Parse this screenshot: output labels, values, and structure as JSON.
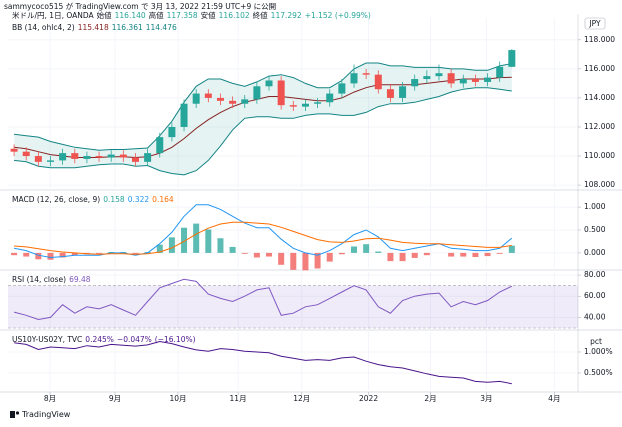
{
  "header": {
    "publisher": "sammycoco515 が TradingView.com で 3月 13, 2022 21:59 UTC+9 に公開",
    "footer": "TradingView",
    "currency": "JPY"
  },
  "chart_data": [
    {
      "type": "candlestick",
      "title": "米ドル/円, 1日, OANDA",
      "legend": [
        {
          "label": "始値",
          "value": "116.140"
        },
        {
          "label": "高値",
          "value": "117.358"
        },
        {
          "label": "安値",
          "value": "116.102"
        },
        {
          "label": "終値",
          "value": "117.292"
        }
      ],
      "change": "+1.152 (+0.99%)",
      "up_color": "#26a69a",
      "down_color": "#ef5350",
      "open": [
        110.5,
        110.3,
        110.0,
        109.6,
        109.7,
        110.2,
        109.8,
        110.0,
        109.9,
        110.1,
        109.9,
        109.6,
        110.2,
        111.3,
        112.0,
        113.6,
        114.3,
        114.0,
        113.8,
        113.6,
        113.9,
        114.8,
        115.2,
        113.5,
        113.4,
        113.6,
        113.7,
        114.3,
        115.0,
        115.7,
        115.6,
        114.6,
        114.0,
        114.8,
        115.3,
        115.5,
        115.7,
        115.0,
        115.3,
        115.1,
        115.4,
        116.14
      ],
      "high": [
        110.8,
        110.6,
        110.3,
        110.0,
        110.5,
        110.5,
        110.3,
        110.3,
        110.4,
        110.4,
        110.2,
        110.5,
        111.6,
        112.3,
        113.9,
        114.6,
        114.6,
        114.3,
        114.1,
        114.2,
        115.1,
        115.5,
        115.5,
        113.8,
        113.9,
        114.0,
        114.6,
        115.3,
        116.3,
        116.0,
        115.9,
        114.9,
        115.1,
        115.6,
        115.9,
        116.3,
        116.0,
        115.6,
        115.6,
        115.7,
        116.5,
        117.358
      ],
      "low": [
        110.0,
        109.7,
        109.3,
        109.3,
        109.4,
        109.5,
        109.5,
        109.6,
        109.6,
        109.6,
        109.3,
        109.3,
        109.9,
        111.0,
        111.7,
        113.3,
        113.7,
        113.5,
        113.3,
        113.3,
        113.6,
        114.5,
        113.2,
        113.1,
        113.1,
        113.3,
        113.4,
        114.0,
        114.7,
        115.3,
        114.3,
        113.7,
        113.7,
        114.5,
        115.0,
        115.2,
        114.7,
        114.7,
        114.8,
        114.8,
        115.1,
        116.102
      ],
      "close": [
        110.3,
        110.0,
        109.6,
        109.7,
        110.2,
        109.8,
        110.0,
        109.9,
        110.1,
        109.9,
        109.6,
        110.2,
        111.3,
        112.0,
        113.6,
        114.3,
        114.0,
        113.8,
        113.6,
        113.9,
        114.8,
        115.2,
        113.5,
        113.4,
        113.6,
        113.7,
        114.3,
        115.0,
        115.7,
        115.6,
        114.6,
        114.0,
        114.8,
        115.3,
        115.5,
        115.7,
        115.0,
        115.3,
        115.1,
        115.4,
        116.14,
        117.292
      ],
      "bands_title": "BB (14, ohlc4, 2)",
      "band_fill": "rgba(38,166,154,0.12)",
      "series": [
        {
          "label": "115.418",
          "color": "#872323",
          "values": [
            110.6,
            110.5,
            110.3,
            110.1,
            110.0,
            109.9,
            109.9,
            109.9,
            109.95,
            109.95,
            109.9,
            109.95,
            110.2,
            110.6,
            111.2,
            111.9,
            112.5,
            113.0,
            113.4,
            113.7,
            113.9,
            114.1,
            114.1,
            114.0,
            113.9,
            113.8,
            113.8,
            114.0,
            114.4,
            114.7,
            114.9,
            114.9,
            114.9,
            114.9,
            115.0,
            115.1,
            115.2,
            115.3,
            115.3,
            115.3,
            115.4,
            115.418
          ]
        },
        {
          "label": "116.361",
          "color": "#138484",
          "values": [
            111.5,
            111.4,
            111.3,
            111.0,
            110.8,
            110.6,
            110.5,
            110.4,
            110.45,
            110.45,
            110.5,
            110.55,
            111.4,
            112.4,
            113.7,
            114.8,
            115.3,
            115.3,
            115.0,
            114.8,
            115.1,
            115.5,
            115.6,
            115.4,
            115.0,
            114.7,
            114.7,
            115.2,
            116.0,
            116.4,
            116.4,
            116.2,
            116.2,
            116.1,
            116.1,
            116.1,
            116.0,
            116.0,
            115.9,
            115.9,
            116.2,
            116.361
          ]
        },
        {
          "label": "114.476",
          "color": "#138484",
          "values": [
            109.7,
            109.6,
            109.3,
            109.2,
            109.2,
            109.2,
            109.3,
            109.4,
            109.45,
            109.45,
            109.3,
            109.35,
            109.0,
            108.8,
            108.7,
            109.0,
            109.7,
            110.7,
            111.8,
            112.6,
            112.7,
            112.7,
            112.6,
            112.6,
            112.8,
            112.9,
            112.9,
            112.8,
            112.8,
            113.0,
            113.4,
            113.6,
            113.6,
            113.7,
            113.9,
            114.1,
            114.4,
            114.6,
            114.7,
            114.7,
            114.6,
            114.476
          ]
        }
      ],
      "xlim": [
        -0.5,
        46.45
      ],
      "ylim": [
        107.8,
        119.5
      ],
      "yticks": [
        {
          "value": 108,
          "label": "108.000"
        },
        {
          "value": 110,
          "label": "110.000"
        },
        {
          "value": 112,
          "label": "112.000"
        },
        {
          "value": 114,
          "label": "114.000"
        },
        {
          "value": 116,
          "label": "116.000"
        },
        {
          "value": 118,
          "label": "118.000"
        }
      ]
    },
    {
      "type": "combo",
      "title": "MACD (12, 26, close, 9)",
      "histogram": {
        "label": "0.158",
        "up_color": "#26a69a",
        "down_color": "#ef5350",
        "values": [
          -0.05,
          -0.08,
          -0.14,
          -0.15,
          -0.1,
          -0.05,
          -0.03,
          -0.02,
          0.02,
          0.02,
          -0.02,
          0.02,
          0.18,
          0.34,
          0.55,
          0.64,
          0.51,
          0.32,
          0.13,
          -0.02,
          -0.1,
          -0.08,
          -0.26,
          -0.37,
          -0.38,
          -0.34,
          -0.19,
          -0.03,
          0.14,
          0.19,
          0.03,
          -0.18,
          -0.18,
          -0.11,
          -0.05,
          0.0,
          -0.08,
          -0.08,
          -0.09,
          -0.07,
          -0.02,
          0.158
        ]
      },
      "series": [
        {
          "label": "0.322",
          "color": "#2196f3",
          "values": [
            0.1,
            0.05,
            -0.05,
            -0.1,
            -0.08,
            -0.05,
            -0.05,
            -0.05,
            0.0,
            0.0,
            -0.05,
            0.0,
            0.2,
            0.45,
            0.8,
            1.05,
            1.05,
            0.95,
            0.8,
            0.65,
            0.55,
            0.55,
            0.3,
            0.1,
            0.0,
            -0.05,
            0.05,
            0.2,
            0.4,
            0.5,
            0.35,
            0.1,
            0.05,
            0.1,
            0.15,
            0.2,
            0.1,
            0.08,
            0.05,
            0.05,
            0.1,
            0.322
          ]
        },
        {
          "label": "0.164",
          "color": "#ff6d00",
          "values": [
            0.15,
            0.13,
            0.09,
            0.05,
            0.02,
            0.0,
            -0.02,
            -0.03,
            -0.02,
            -0.02,
            -0.03,
            -0.02,
            0.02,
            0.11,
            0.25,
            0.41,
            0.54,
            0.63,
            0.67,
            0.67,
            0.65,
            0.63,
            0.56,
            0.47,
            0.38,
            0.29,
            0.24,
            0.23,
            0.26,
            0.31,
            0.32,
            0.28,
            0.23,
            0.21,
            0.2,
            0.2,
            0.18,
            0.16,
            0.14,
            0.12,
            0.12,
            0.164
          ]
        }
      ],
      "xlim": [
        -0.5,
        46.45
      ],
      "ylim": [
        -0.33,
        1.33
      ],
      "yticks": [
        {
          "value": 0,
          "label": "0.000"
        },
        {
          "value": 0.5,
          "label": "0.500"
        },
        {
          "value": 1,
          "label": "1.000"
        }
      ]
    },
    {
      "type": "line",
      "title": "RSI (14, close)",
      "band": [
        30,
        70
      ],
      "band_color": "rgba(126,87,194,0.12)",
      "series": [
        {
          "label": "69.48",
          "color": "#7e57c2",
          "values": [
            45,
            42,
            38,
            40,
            52,
            44,
            50,
            48,
            52,
            47,
            42,
            55,
            68,
            72,
            76,
            74,
            62,
            58,
            55,
            60,
            66,
            68,
            42,
            44,
            50,
            52,
            58,
            64,
            70,
            66,
            50,
            44,
            56,
            60,
            62,
            63,
            50,
            55,
            52,
            56,
            64,
            69.48
          ]
        }
      ],
      "xlim": [
        -0.5,
        46.45
      ],
      "ylim": [
        30,
        82.9
      ],
      "yticks": [
        {
          "value": 40,
          "label": "40.00"
        },
        {
          "value": 60,
          "label": "60.00"
        },
        {
          "value": 80,
          "label": "80.00"
        }
      ]
    },
    {
      "type": "line",
      "title": "US10Y-US02Y, TVC",
      "change": "−0.047%",
      "change_pct": "(−16.10%)",
      "axis_unit": "pct",
      "series": [
        {
          "label": "0.245%",
          "color": "#4a148c",
          "values": [
            1.22,
            1.18,
            1.06,
            1.12,
            1.1,
            1.08,
            1.15,
            1.12,
            1.18,
            1.16,
            1.14,
            1.17,
            1.25,
            1.2,
            1.12,
            1.05,
            1.02,
            1.08,
            1.06,
            1.02,
            1.0,
            0.98,
            0.9,
            0.85,
            0.8,
            0.82,
            0.8,
            0.86,
            0.88,
            0.78,
            0.7,
            0.65,
            0.62,
            0.55,
            0.48,
            0.42,
            0.4,
            0.38,
            0.3,
            0.28,
            0.3,
            0.245
          ]
        }
      ],
      "xlim": [
        -0.5,
        46.45
      ],
      "ylim": [
        0.095,
        1.476
      ],
      "yticks": [
        {
          "value": 0.5,
          "label": "0.500%"
        },
        {
          "value": 1,
          "label": "1.000%"
        }
      ],
      "xticks": [
        {
          "value": 2.96,
          "label": "8月"
        },
        {
          "value": 8.31,
          "label": "9月"
        },
        {
          "value": 13.5,
          "label": "10月"
        },
        {
          "value": 18.45,
          "label": "11月"
        },
        {
          "value": 23.7,
          "label": "12月"
        },
        {
          "value": 29.2,
          "label": "2022"
        },
        {
          "value": 34.3,
          "label": "2月"
        },
        {
          "value": 38.9,
          "label": "3月"
        },
        {
          "value": 44.5,
          "label": "4月"
        }
      ]
    }
  ]
}
